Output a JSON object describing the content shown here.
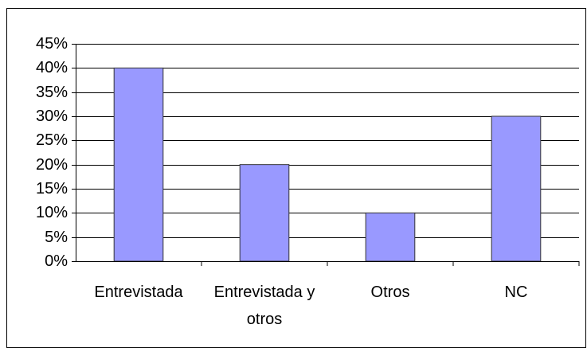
{
  "chart_data": {
    "type": "bar",
    "categories": [
      "Entrevistada",
      "Entrevistada y otros",
      "Otros",
      "NC"
    ],
    "values": [
      40,
      20,
      10,
      30
    ],
    "color": "#9999ff",
    "ylim": [
      0,
      45
    ],
    "yticks": [
      {
        "value": 0,
        "label": "0%"
      },
      {
        "value": 5,
        "label": "5%"
      },
      {
        "value": 10,
        "label": "10%"
      },
      {
        "value": 15,
        "label": "15%"
      },
      {
        "value": 20,
        "label": "20%"
      },
      {
        "value": 25,
        "label": "25%"
      },
      {
        "value": 30,
        "label": "30%"
      },
      {
        "value": 35,
        "label": "35%"
      },
      {
        "value": 40,
        "label": "40%"
      },
      {
        "value": 45,
        "label": "45%"
      }
    ],
    "grid": true
  }
}
